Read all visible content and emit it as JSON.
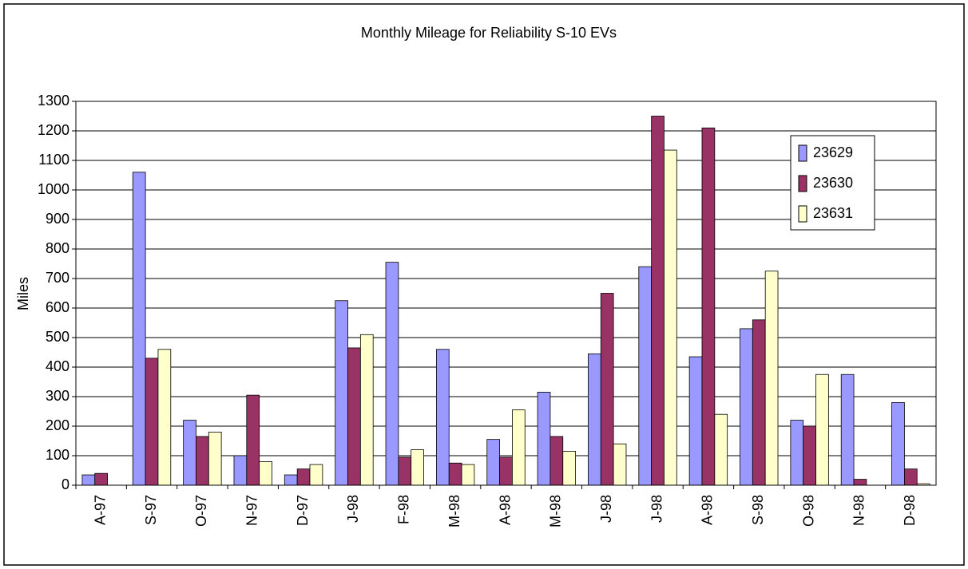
{
  "chart_data": {
    "type": "bar",
    "title": "Monthly Mileage for Reliability S-10 EVs",
    "y_label": "Miles",
    "categories": [
      "A-97",
      "S-97",
      "O-97",
      "N-97",
      "D-97",
      "J-98",
      "F-98",
      "M-98",
      "A-98",
      "M-98",
      "J-98",
      "J-98",
      "A-98",
      "S-98",
      "O-98",
      "N-98",
      "D-98"
    ],
    "series": [
      {
        "name": "23629",
        "color": "#9999ff",
        "values": [
          35,
          1060,
          220,
          100,
          35,
          625,
          755,
          460,
          155,
          315,
          445,
          740,
          435,
          530,
          220,
          375,
          280
        ]
      },
      {
        "name": "23630",
        "color": "#993366",
        "values": [
          40,
          430,
          165,
          305,
          55,
          465,
          95,
          75,
          95,
          165,
          650,
          1250,
          1210,
          560,
          200,
          20,
          55
        ]
      },
      {
        "name": "23631",
        "color": "#ffffcc",
        "values": [
          null,
          460,
          180,
          80,
          70,
          510,
          120,
          70,
          255,
          115,
          140,
          1135,
          240,
          725,
          375,
          null,
          5
        ]
      }
    ],
    "ylim": [
      0,
      1300
    ],
    "yticks": [
      0,
      100,
      200,
      300,
      400,
      500,
      600,
      700,
      800,
      900,
      1000,
      1100,
      1200,
      1300
    ],
    "grid": true,
    "legend": "right"
  }
}
